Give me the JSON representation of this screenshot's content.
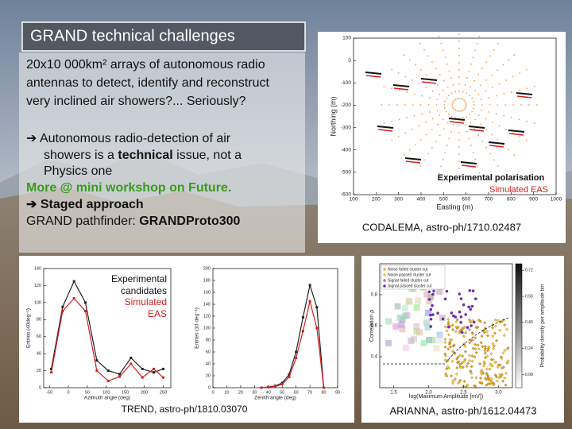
{
  "title": "GRAND technical challenges",
  "text": {
    "intro": [
      "20x10 000km² arrays of autonomous radio",
      "antennas to detect, identify and reconstruct",
      "very inclined air showers?... Seriously?"
    ],
    "bullet1": {
      "line1": "➔ Autonomous radio-detection of air",
      "line2a": "showers is a ",
      "line2b": "technical",
      "line2c": " issue, not a",
      "line3": "Physics one"
    },
    "link": "More @ mini workshop on Future.",
    "bullet2": "➔ Staged approach",
    "pathfinder": {
      "a": "GRAND pathfinder: ",
      "b": "GRANDProto300"
    }
  },
  "codalema": {
    "caption": "CODALEMA, astro-ph/1710.02487",
    "legend": [
      "Experimental polarisation",
      "Simulated EAS"
    ],
    "plot": {
      "xlabel": "Easting (m)",
      "ylabel": "Northing (m)",
      "xlim": [
        100,
        1000
      ],
      "ylim": [
        -600,
        100
      ],
      "xticks": [
        100,
        200,
        300,
        400,
        500,
        600,
        700,
        800,
        900,
        1000
      ],
      "yticks": [
        100,
        0,
        -100,
        -200,
        -300,
        -400,
        -500,
        -600
      ]
    }
  },
  "trend": {
    "caption": "TREND, astro-ph/1810.03070",
    "legend": [
      "Experimental",
      "candidates",
      "Simulated",
      "EAS"
    ],
    "plots": [
      {
        "xlabel": "Azimuth angle (deg)",
        "ylabel": "Entries (40deg⁻¹)",
        "xlim": [
          -65,
          270
        ],
        "ylim": [
          0,
          140
        ],
        "xticks": [
          -50,
          0,
          50,
          100,
          150,
          200,
          250
        ],
        "yticks": [
          0,
          20,
          40,
          60,
          80,
          100,
          120,
          140
        ],
        "series": [
          {
            "color": "#222222",
            "x": [
              -45,
              -15,
              15,
              45,
              75,
              105,
              135,
              165,
              195,
              225,
              250
            ],
            "values": [
              22,
              95,
              125,
              100,
              32,
              20,
              16,
              35,
              22,
              18,
              22
            ]
          },
          {
            "color": "#d42020",
            "x": [
              -45,
              -15,
              15,
              45,
              75,
              105,
              135,
              165,
              195,
              225,
              250
            ],
            "values": [
              18,
              90,
              105,
              90,
              20,
              8,
              13,
              28,
              12,
              22,
              12
            ]
          }
        ]
      },
      {
        "xlabel": "Zenith angle (deg)",
        "ylabel": "Entries (10 deg⁻¹)",
        "xlim": [
          0,
          90
        ],
        "ylim": [
          0,
          200
        ],
        "xticks": [
          0,
          10,
          20,
          30,
          40,
          50,
          60,
          70,
          80,
          90
        ],
        "yticks": [
          0,
          20,
          40,
          60,
          80,
          100,
          120,
          140,
          160,
          180,
          200
        ],
        "series": [
          {
            "color": "#222222",
            "x": [
              35,
              40,
              45,
              50,
              55,
              60,
              65,
              70,
              75,
              80
            ],
            "values": [
              0,
              1,
              3,
              8,
              22,
              60,
              118,
              172,
              135,
              0
            ]
          },
          {
            "color": "#d42020",
            "x": [
              35,
              40,
              45,
              50,
              55,
              60,
              65,
              70,
              75,
              80
            ],
            "values": [
              0,
              1,
              2,
              6,
              18,
              50,
              95,
              145,
              100,
              0
            ]
          }
        ]
      }
    ]
  },
  "arianna": {
    "caption": "ARIANNA, astro-ph/1612.04473",
    "legend": [
      {
        "label": "Noise failed cluster cut",
        "color": "#e0b070"
      },
      {
        "label": "Noise passed cluster cut",
        "color": "#f0d040"
      },
      {
        "label": "Signal failed cluster cut",
        "color": "#888888"
      },
      {
        "label": "Signal passed cluster cut",
        "color": "#7030b0"
      }
    ],
    "plot": {
      "xlabel": "log(Maximum Amplitude [mV])",
      "ylabel": "Correlation ρ",
      "xlim": [
        1.3,
        3.2
      ],
      "ylim": [
        0.2,
        1.0
      ],
      "xticks": [
        1.5,
        {
          "value": 2,
          "label": "2.0"
        },
        2.5,
        {
          "value": 3,
          "label": "3.0"
        }
      ],
      "yticks": [
        0.4,
        0.6,
        0.8
      ]
    },
    "colorbar": {
      "label": "Probability density per amplitude bin",
      "ylim": [
        0,
        0.76
      ],
      "yticks": [
        0.72,
        0.56,
        {
          "value": 0.4,
          "label": "0.40"
        },
        0.24,
        0.08
      ]
    }
  }
}
